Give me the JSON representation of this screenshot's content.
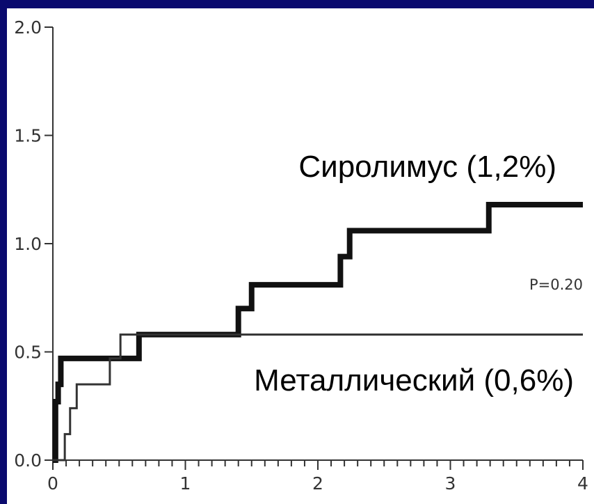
{
  "chart_data": {
    "type": "line",
    "title": "",
    "xlabel": "",
    "ylabel": "",
    "xlim": [
      0,
      4
    ],
    "ylim": [
      0,
      2
    ],
    "x_ticks": [
      "0",
      "1",
      "2",
      "3",
      "4"
    ],
    "y_ticks": [
      "0.0",
      "0.5",
      "1.0",
      "1.5",
      "2.0"
    ],
    "grid": false,
    "step": true,
    "series": [
      {
        "name": "Сиролимус (1,2%)",
        "color": "#111111",
        "thick": true,
        "points": [
          [
            0,
            0.0
          ],
          [
            0.02,
            0.27
          ],
          [
            0.04,
            0.35
          ],
          [
            0.06,
            0.47
          ],
          [
            0.63,
            0.47
          ],
          [
            0.65,
            0.58
          ],
          [
            1.38,
            0.58
          ],
          [
            1.4,
            0.7
          ],
          [
            1.48,
            0.7
          ],
          [
            1.5,
            0.81
          ],
          [
            2.15,
            0.81
          ],
          [
            2.17,
            0.94
          ],
          [
            2.22,
            0.94
          ],
          [
            2.24,
            1.06
          ],
          [
            3.27,
            1.06
          ],
          [
            3.29,
            1.18
          ],
          [
            4.0,
            1.18
          ]
        ]
      },
      {
        "name": "Металлический (0,6%)",
        "color": "#333333",
        "thick": false,
        "points": [
          [
            0,
            0.0
          ],
          [
            0.08,
            0.0
          ],
          [
            0.09,
            0.12
          ],
          [
            0.12,
            0.12
          ],
          [
            0.13,
            0.24
          ],
          [
            0.17,
            0.24
          ],
          [
            0.18,
            0.35
          ],
          [
            0.42,
            0.35
          ],
          [
            0.43,
            0.47
          ],
          [
            0.5,
            0.47
          ],
          [
            0.51,
            0.58
          ],
          [
            4.0,
            0.58
          ]
        ]
      }
    ],
    "annotations": [
      "P=0.20"
    ]
  }
}
